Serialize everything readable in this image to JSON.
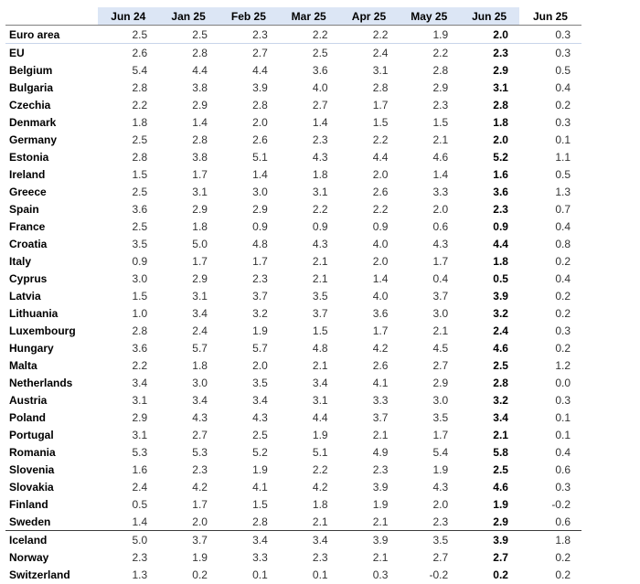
{
  "headers": [
    "",
    "Jun 24",
    "Jan 25",
    "Feb 25",
    "Mar 25",
    "Apr 25",
    "May 25",
    "Jun 25",
    "Jun 25"
  ],
  "rows": [
    {
      "label": "Euro area",
      "v": [
        "2.5",
        "2.5",
        "2.3",
        "2.2",
        "2.2",
        "1.9",
        "2.0",
        "0.3"
      ]
    },
    {
      "label": "EU",
      "v": [
        "2.6",
        "2.8",
        "2.7",
        "2.5",
        "2.4",
        "2.2",
        "2.3",
        "0.3"
      ]
    },
    {
      "label": "Belgium",
      "v": [
        "5.4",
        "4.4",
        "4.4",
        "3.6",
        "3.1",
        "2.8",
        "2.9",
        "0.5"
      ]
    },
    {
      "label": "Bulgaria",
      "v": [
        "2.8",
        "3.8",
        "3.9",
        "4.0",
        "2.8",
        "2.9",
        "3.1",
        "0.4"
      ]
    },
    {
      "label": "Czechia",
      "v": [
        "2.2",
        "2.9",
        "2.8",
        "2.7",
        "1.7",
        "2.3",
        "2.8",
        "0.2"
      ]
    },
    {
      "label": "Denmark",
      "v": [
        "1.8",
        "1.4",
        "2.0",
        "1.4",
        "1.5",
        "1.5",
        "1.8",
        "0.3"
      ]
    },
    {
      "label": "Germany",
      "v": [
        "2.5",
        "2.8",
        "2.6",
        "2.3",
        "2.2",
        "2.1",
        "2.0",
        "0.1"
      ]
    },
    {
      "label": "Estonia",
      "v": [
        "2.8",
        "3.8",
        "5.1",
        "4.3",
        "4.4",
        "4.6",
        "5.2",
        "1.1"
      ]
    },
    {
      "label": "Ireland",
      "v": [
        "1.5",
        "1.7",
        "1.4",
        "1.8",
        "2.0",
        "1.4",
        "1.6",
        "0.5"
      ]
    },
    {
      "label": "Greece",
      "v": [
        "2.5",
        "3.1",
        "3.0",
        "3.1",
        "2.6",
        "3.3",
        "3.6",
        "1.3"
      ]
    },
    {
      "label": "Spain",
      "v": [
        "3.6",
        "2.9",
        "2.9",
        "2.2",
        "2.2",
        "2.0",
        "2.3",
        "0.7"
      ]
    },
    {
      "label": "France",
      "v": [
        "2.5",
        "1.8",
        "0.9",
        "0.9",
        "0.9",
        "0.6",
        "0.9",
        "0.4"
      ]
    },
    {
      "label": "Croatia",
      "v": [
        "3.5",
        "5.0",
        "4.8",
        "4.3",
        "4.0",
        "4.3",
        "4.4",
        "0.8"
      ]
    },
    {
      "label": "Italy",
      "v": [
        "0.9",
        "1.7",
        "1.7",
        "2.1",
        "2.0",
        "1.7",
        "1.8",
        "0.2"
      ]
    },
    {
      "label": "Cyprus",
      "v": [
        "3.0",
        "2.9",
        "2.3",
        "2.1",
        "1.4",
        "0.4",
        "0.5",
        "0.4"
      ]
    },
    {
      "label": "Latvia",
      "v": [
        "1.5",
        "3.1",
        "3.7",
        "3.5",
        "4.0",
        "3.7",
        "3.9",
        "0.2"
      ]
    },
    {
      "label": "Lithuania",
      "v": [
        "1.0",
        "3.4",
        "3.2",
        "3.7",
        "3.6",
        "3.0",
        "3.2",
        "0.2"
      ]
    },
    {
      "label": "Luxembourg",
      "v": [
        "2.8",
        "2.4",
        "1.9",
        "1.5",
        "1.7",
        "2.1",
        "2.4",
        "0.3"
      ]
    },
    {
      "label": "Hungary",
      "v": [
        "3.6",
        "5.7",
        "5.7",
        "4.8",
        "4.2",
        "4.5",
        "4.6",
        "0.2"
      ]
    },
    {
      "label": "Malta",
      "v": [
        "2.2",
        "1.8",
        "2.0",
        "2.1",
        "2.6",
        "2.7",
        "2.5",
        "1.2"
      ]
    },
    {
      "label": "Netherlands",
      "v": [
        "3.4",
        "3.0",
        "3.5",
        "3.4",
        "4.1",
        "2.9",
        "2.8",
        "0.0"
      ]
    },
    {
      "label": "Austria",
      "v": [
        "3.1",
        "3.4",
        "3.4",
        "3.1",
        "3.3",
        "3.0",
        "3.2",
        "0.3"
      ]
    },
    {
      "label": "Poland",
      "v": [
        "2.9",
        "4.3",
        "4.3",
        "4.4",
        "3.7",
        "3.5",
        "3.4",
        "0.1"
      ]
    },
    {
      "label": "Portugal",
      "v": [
        "3.1",
        "2.7",
        "2.5",
        "1.9",
        "2.1",
        "1.7",
        "2.1",
        "0.1"
      ]
    },
    {
      "label": "Romania",
      "v": [
        "5.3",
        "5.3",
        "5.2",
        "5.1",
        "4.9",
        "5.4",
        "5.8",
        "0.4"
      ]
    },
    {
      "label": "Slovenia",
      "v": [
        "1.6",
        "2.3",
        "1.9",
        "2.2",
        "2.3",
        "1.9",
        "2.5",
        "0.6"
      ]
    },
    {
      "label": "Slovakia",
      "v": [
        "2.4",
        "4.2",
        "4.1",
        "4.2",
        "3.9",
        "4.3",
        "4.6",
        "0.3"
      ]
    },
    {
      "label": "Finland",
      "v": [
        "0.5",
        "1.7",
        "1.5",
        "1.8",
        "1.9",
        "2.0",
        "1.9",
        "-0.2"
      ]
    },
    {
      "label": "Sweden",
      "v": [
        "1.4",
        "2.0",
        "2.8",
        "2.1",
        "2.1",
        "2.3",
        "2.9",
        "0.6"
      ]
    },
    {
      "label": "Iceland",
      "v": [
        "5.0",
        "3.7",
        "3.4",
        "3.4",
        "3.9",
        "3.5",
        "3.9",
        "1.8"
      ]
    },
    {
      "label": "Norway",
      "v": [
        "2.3",
        "1.9",
        "3.3",
        "2.3",
        "2.1",
        "2.7",
        "2.7",
        "0.2"
      ]
    },
    {
      "label": "Switzerland",
      "v": [
        "1.3",
        "0.2",
        "0.1",
        "0.1",
        "0.3",
        "-0.2",
        "0.2",
        "0.2"
      ]
    }
  ]
}
